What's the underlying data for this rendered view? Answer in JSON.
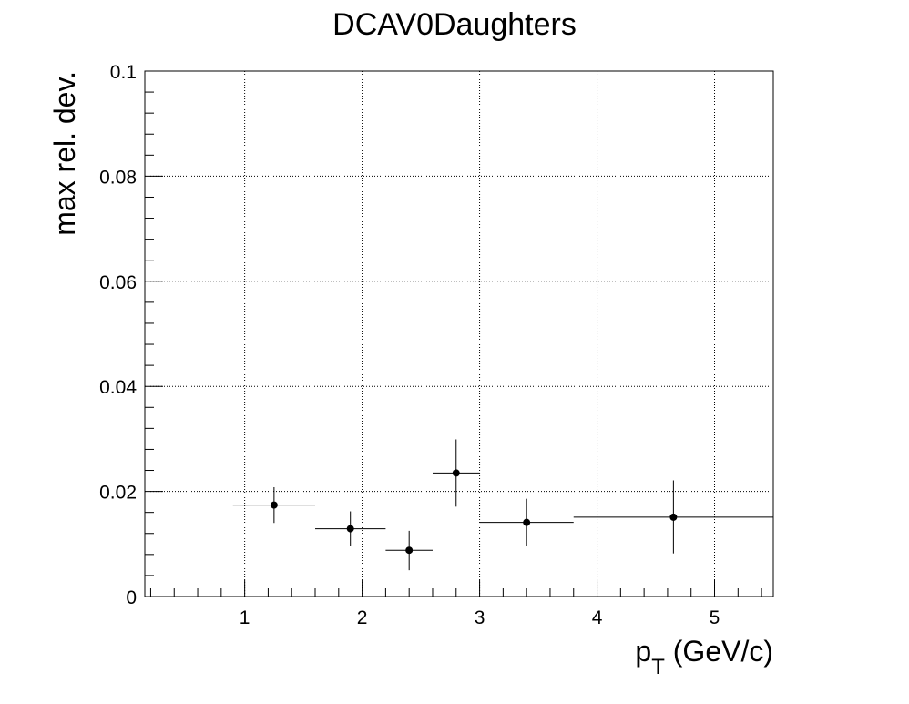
{
  "chart_data": {
    "type": "scatter",
    "title": "DCAV0Daughters",
    "xlabel": {
      "main": "p",
      "sub": "T",
      "rest": " (GeV/c)"
    },
    "ylabel": "max rel. dev.",
    "xlim": [
      0.15,
      5.5
    ],
    "ylim": [
      0,
      0.1
    ],
    "grid": true,
    "x_ticks": [
      1,
      2,
      3,
      4,
      5
    ],
    "x_tick_labels": [
      "1",
      "2",
      "3",
      "4",
      "5"
    ],
    "y_ticks": [
      0,
      0.02,
      0.04,
      0.06,
      0.08,
      0.1
    ],
    "y_tick_labels": [
      "0",
      "0.02",
      "0.04",
      "0.06",
      "0.08",
      "0.1"
    ],
    "points": [
      {
        "x": 1.25,
        "xlo": 0.9,
        "xhi": 1.6,
        "y": 0.0174,
        "ylo": 0.014,
        "yhi": 0.0208
      },
      {
        "x": 1.9,
        "xlo": 1.6,
        "xhi": 2.2,
        "y": 0.0129,
        "ylo": 0.0096,
        "yhi": 0.0162
      },
      {
        "x": 2.4,
        "xlo": 2.2,
        "xhi": 2.6,
        "y": 0.0088,
        "ylo": 0.005,
        "yhi": 0.0125
      },
      {
        "x": 2.8,
        "xlo": 2.6,
        "xhi": 3.0,
        "y": 0.0235,
        "ylo": 0.0171,
        "yhi": 0.0299
      },
      {
        "x": 3.4,
        "xlo": 3.0,
        "xhi": 3.8,
        "y": 0.0141,
        "ylo": 0.0096,
        "yhi": 0.0186
      },
      {
        "x": 4.65,
        "xlo": 3.8,
        "xhi": 5.5,
        "y": 0.0151,
        "ylo": 0.0082,
        "yhi": 0.0221
      }
    ]
  }
}
